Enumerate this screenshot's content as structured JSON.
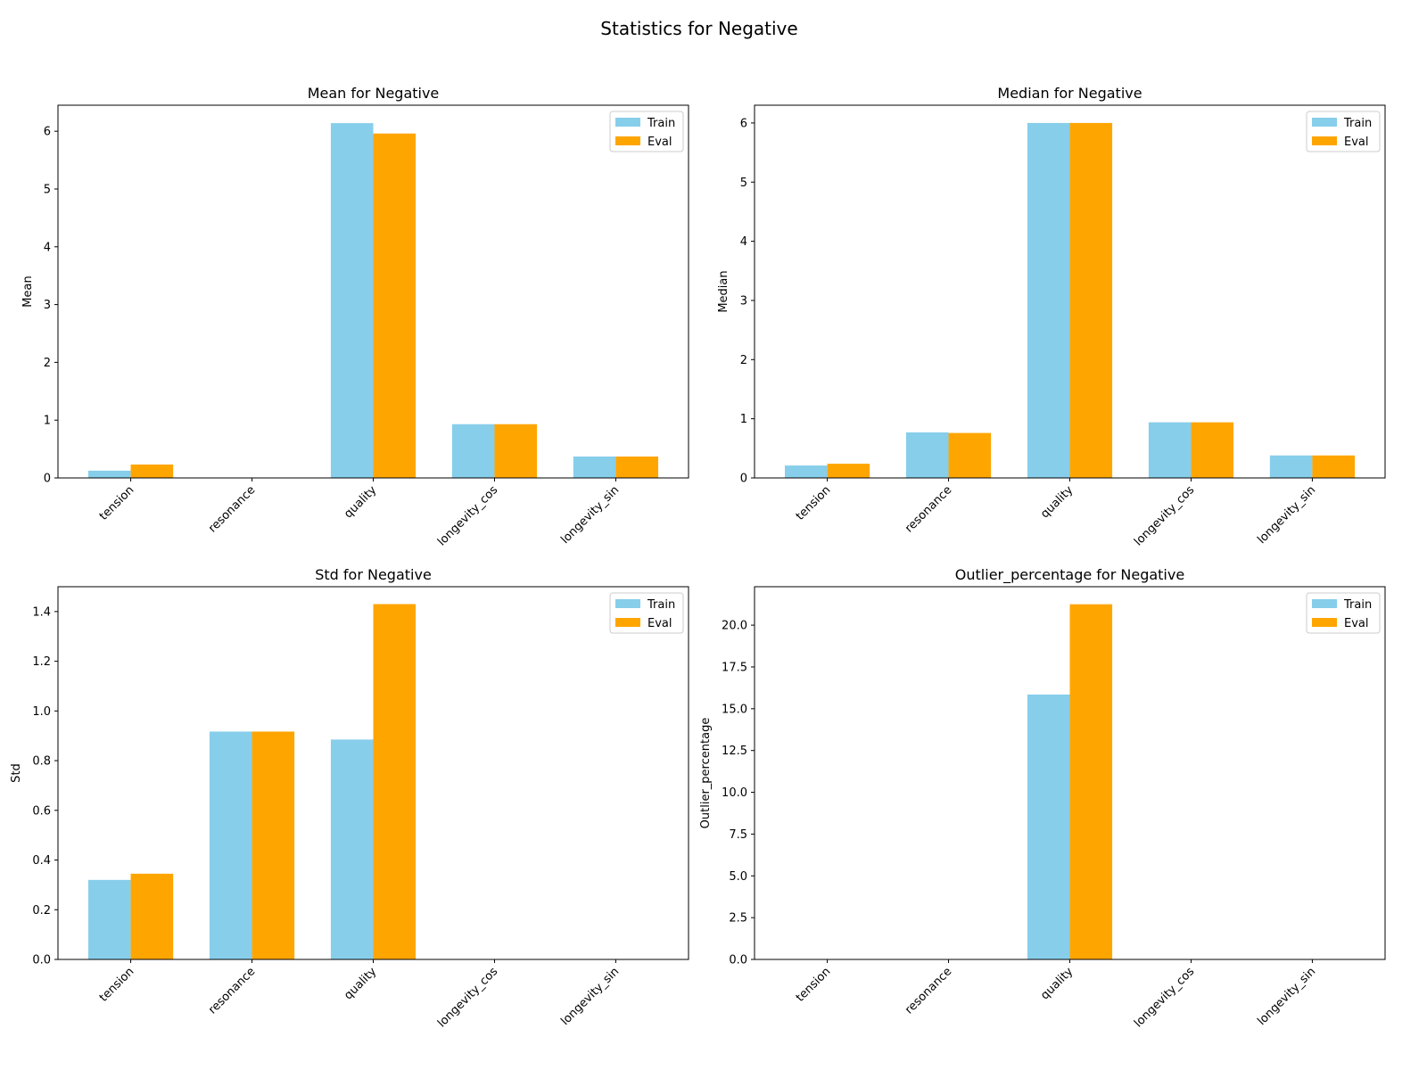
{
  "suptitle": "Statistics for Negative",
  "colors": {
    "Train": "#87CEEB",
    "Eval": "#FFA500"
  },
  "chart_data": [
    {
      "type": "bar",
      "title": "Mean for Negative",
      "ylabel": "Mean",
      "categories": [
        "tension",
        "resonance",
        "quality",
        "longevity_cos",
        "longevity_sin"
      ],
      "series": [
        {
          "name": "Train",
          "values": [
            0.126,
            0.0,
            6.14,
            0.93,
            0.37
          ]
        },
        {
          "name": "Eval",
          "values": [
            0.232,
            0.0,
            5.96,
            0.93,
            0.37
          ]
        }
      ],
      "ylim": [
        0,
        6.45
      ],
      "yticks": [
        0,
        1,
        2,
        3,
        4,
        5,
        6
      ],
      "legend": "top-right"
    },
    {
      "type": "bar",
      "title": "Median for Negative",
      "ylabel": "Median",
      "categories": [
        "tension",
        "resonance",
        "quality",
        "longevity_cos",
        "longevity_sin"
      ],
      "series": [
        {
          "name": "Train",
          "values": [
            0.21,
            0.77,
            6.0,
            0.94,
            0.38
          ]
        },
        {
          "name": "Eval",
          "values": [
            0.24,
            0.76,
            6.0,
            0.94,
            0.38
          ]
        }
      ],
      "ylim": [
        0,
        6.3
      ],
      "yticks": [
        0,
        1,
        2,
        3,
        4,
        5,
        6
      ],
      "legend": "top-right"
    },
    {
      "type": "bar",
      "title": "Std for Negative",
      "ylabel": "Std",
      "categories": [
        "tension",
        "resonance",
        "quality",
        "longevity_cos",
        "longevity_sin"
      ],
      "series": [
        {
          "name": "Train",
          "values": [
            0.32,
            0.917,
            0.885,
            0.0,
            0.0
          ]
        },
        {
          "name": "Eval",
          "values": [
            0.345,
            0.917,
            1.43,
            0.0,
            0.0
          ]
        }
      ],
      "ylim": [
        0,
        1.5
      ],
      "yticks": [
        0.0,
        0.2,
        0.4,
        0.6,
        0.8,
        1.0,
        1.2,
        1.4
      ],
      "ytick_labels": [
        "0.0",
        "0.2",
        "0.4",
        "0.6",
        "0.8",
        "1.0",
        "1.2",
        "1.4"
      ],
      "legend": "top-right"
    },
    {
      "type": "bar",
      "title": "Outlier_percentage for Negative",
      "ylabel": "Outlier_percentage",
      "categories": [
        "tension",
        "resonance",
        "quality",
        "longevity_cos",
        "longevity_sin"
      ],
      "series": [
        {
          "name": "Train",
          "values": [
            0.0,
            0.0,
            15.85,
            0.0,
            0.0
          ]
        },
        {
          "name": "Eval",
          "values": [
            0.0,
            0.0,
            21.25,
            0.0,
            0.0
          ]
        }
      ],
      "ylim": [
        0,
        22.3
      ],
      "yticks": [
        0,
        2.5,
        5,
        7.5,
        10,
        12.5,
        15,
        17.5,
        20
      ],
      "ytick_labels": [
        "0.0",
        "2.5",
        "5.0",
        "7.5",
        "10.0",
        "12.5",
        "15.0",
        "17.5",
        "20.0"
      ],
      "legend": "top-right"
    }
  ]
}
